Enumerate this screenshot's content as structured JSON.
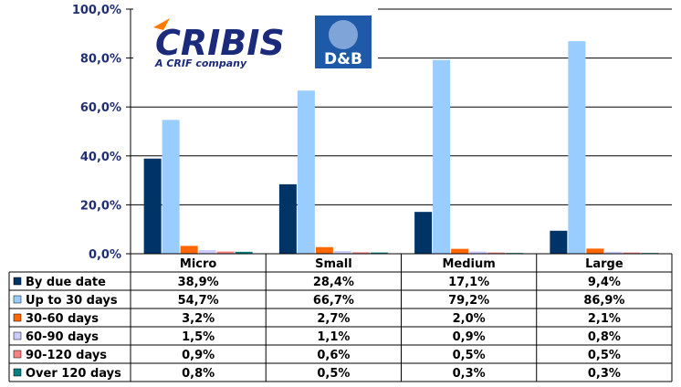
{
  "logos": {
    "cribis": {
      "name": "CRIBIS",
      "tagline": "A CRIF company"
    },
    "dnb": {
      "name": "D&B"
    }
  },
  "chart_data": {
    "type": "bar",
    "categories": [
      "Micro",
      "Small",
      "Medium",
      "Large"
    ],
    "yticks": [
      "100,0%",
      "80,0%",
      "60,0%",
      "40,0%",
      "20,0%",
      "0,0%"
    ],
    "ylim": [
      0,
      100
    ],
    "grid": true,
    "legend": "data-table",
    "series": [
      {
        "name": "By due date",
        "color": "#003366",
        "values": [
          38.9,
          28.4,
          17.1,
          9.4
        ],
        "labels": [
          "38,9%",
          "28,4%",
          "17,1%",
          "9,4%"
        ]
      },
      {
        "name": "Up to 30 days",
        "color": "#99ccff",
        "values": [
          54.7,
          66.7,
          79.2,
          86.9
        ],
        "labels": [
          "54,7%",
          "66,7%",
          "79,2%",
          "86,9%"
        ]
      },
      {
        "name": "30-60 days",
        "color": "#ff6600",
        "values": [
          3.2,
          2.7,
          2.0,
          2.1
        ],
        "labels": [
          "3,2%",
          "2,7%",
          "2,0%",
          "2,1%"
        ]
      },
      {
        "name": "60-90 days",
        "color": "#ccccff",
        "values": [
          1.5,
          1.1,
          0.9,
          0.8
        ],
        "labels": [
          "1,5%",
          "1,1%",
          "0,9%",
          "0,8%"
        ]
      },
      {
        "name": "90-120 days",
        "color": "#ff8080",
        "values": [
          0.9,
          0.6,
          0.5,
          0.5
        ],
        "labels": [
          "0,9%",
          "0,6%",
          "0,5%",
          "0,5%"
        ]
      },
      {
        "name": "Over 120 days",
        "color": "#008080",
        "values": [
          0.8,
          0.5,
          0.3,
          0.3
        ],
        "labels": [
          "0,8%",
          "0,5%",
          "0,3%",
          "0,3%"
        ]
      }
    ]
  }
}
